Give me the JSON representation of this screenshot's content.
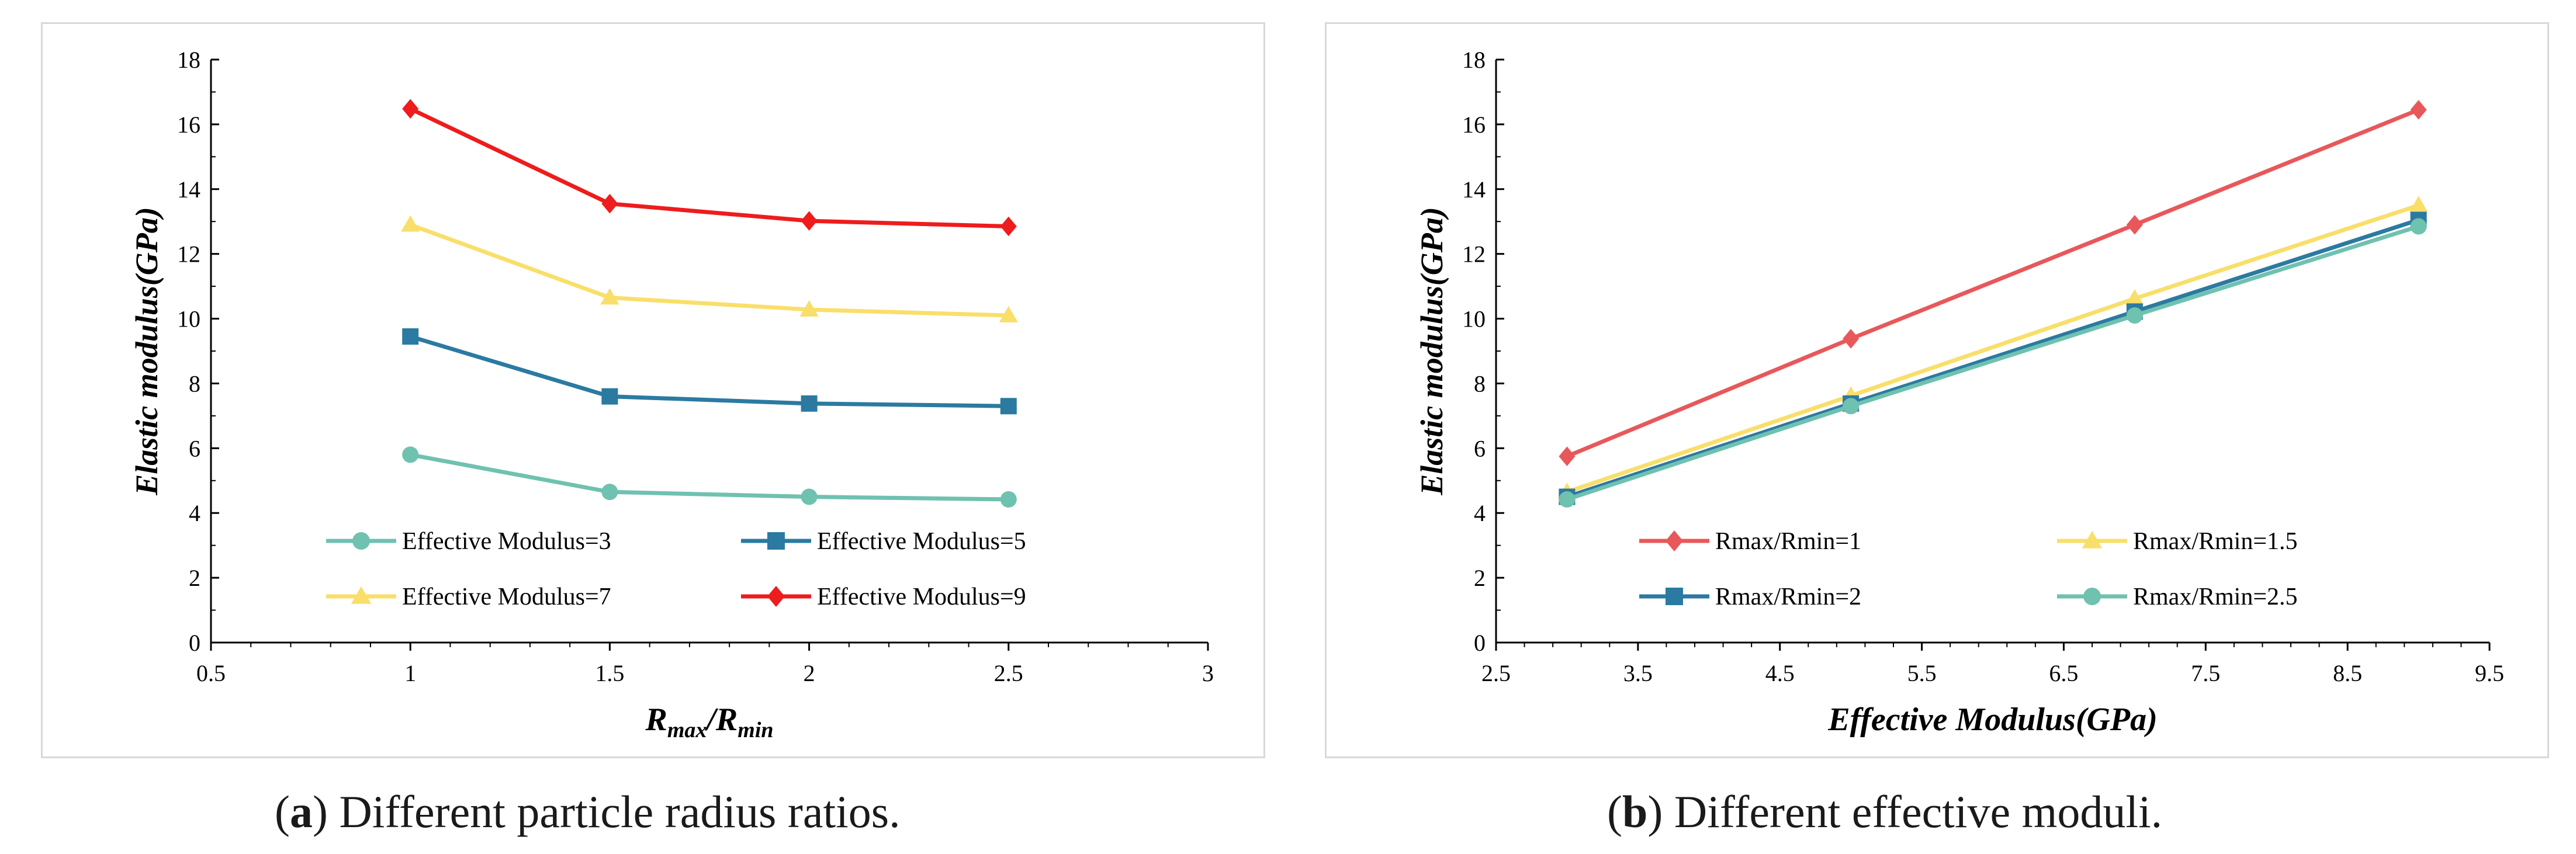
{
  "captions": {
    "a_letter": "a",
    "a_text": " Different particle radius ratios.",
    "b_letter": "b",
    "b_text": " Different effective moduli."
  },
  "chart_data": [
    {
      "type": "line",
      "id": "a",
      "title": "",
      "xlabel": "R",
      "xlabel_sub1": "max",
      "xlabel_mid": "/R",
      "xlabel_sub2": "min",
      "ylabel": "Elastic modulus(GPa)",
      "xlim": [
        0.5,
        3
      ],
      "ylim": [
        0,
        18
      ],
      "xticks": [
        "0.5",
        "1",
        "1.5",
        "2",
        "2.5",
        "3"
      ],
      "xtick_values": [
        0.5,
        1,
        1.5,
        2,
        2.5,
        3
      ],
      "yticks": [
        "0",
        "2",
        "4",
        "6",
        "8",
        "10",
        "12",
        "14",
        "16",
        "18"
      ],
      "ytick_values": [
        0,
        2,
        4,
        6,
        8,
        10,
        12,
        14,
        16,
        18
      ],
      "grid": false,
      "legend_position": "bottom-left",
      "x": [
        1,
        1.5,
        2,
        2.5
      ],
      "series": [
        {
          "name": "Effective Modulus=3",
          "color": "#6fc1b0",
          "marker": "circle",
          "values": [
            5.8,
            4.65,
            4.5,
            4.42
          ]
        },
        {
          "name": "Effective Modulus=5",
          "color": "#2b7aa1",
          "marker": "square",
          "values": [
            9.45,
            7.6,
            7.38,
            7.3
          ]
        },
        {
          "name": "Effective Modulus=7",
          "color": "#f9df6a",
          "marker": "triangle",
          "values": [
            12.9,
            10.65,
            10.28,
            10.1
          ]
        },
        {
          "name": "Effective Modulus=9",
          "color": "#ee1c1c",
          "marker": "diamond",
          "values": [
            16.48,
            13.55,
            13.02,
            12.85
          ]
        }
      ]
    },
    {
      "type": "line",
      "id": "b",
      "title": "",
      "xlabel": "Effective Modulus(GPa)",
      "ylabel": "Elastic modulus(GPa)",
      "xlim": [
        2.5,
        9.5
      ],
      "ylim": [
        0,
        18
      ],
      "xticks": [
        "2.5",
        "3.5",
        "4.5",
        "5.5",
        "6.5",
        "7.5",
        "8.5",
        "9.5"
      ],
      "xtick_values": [
        2.5,
        3.5,
        4.5,
        5.5,
        6.5,
        7.5,
        8.5,
        9.5
      ],
      "yticks": [
        "0",
        "2",
        "4",
        "6",
        "8",
        "10",
        "12",
        "14",
        "16",
        "18"
      ],
      "ytick_values": [
        0,
        2,
        4,
        6,
        8,
        10,
        12,
        14,
        16,
        18
      ],
      "grid": false,
      "legend_position": "bottom-right",
      "x": [
        3,
        5,
        7,
        9
      ],
      "series": [
        {
          "name": "Rmax/Rmin=1",
          "color": "#e8585a",
          "marker": "diamond",
          "values": [
            5.75,
            9.38,
            12.9,
            16.45
          ]
        },
        {
          "name": "Rmax/Rmin=1.5",
          "color": "#f9df6a",
          "marker": "triangle",
          "values": [
            4.65,
            7.62,
            10.62,
            13.5
          ]
        },
        {
          "name": "Rmax/Rmin=2",
          "color": "#2b7aa1",
          "marker": "square",
          "values": [
            4.5,
            7.38,
            10.22,
            13.05
          ]
        },
        {
          "name": "Rmax/Rmin=2.5",
          "color": "#6fc1b0",
          "marker": "circle",
          "values": [
            4.42,
            7.3,
            10.1,
            12.85
          ]
        }
      ]
    }
  ]
}
